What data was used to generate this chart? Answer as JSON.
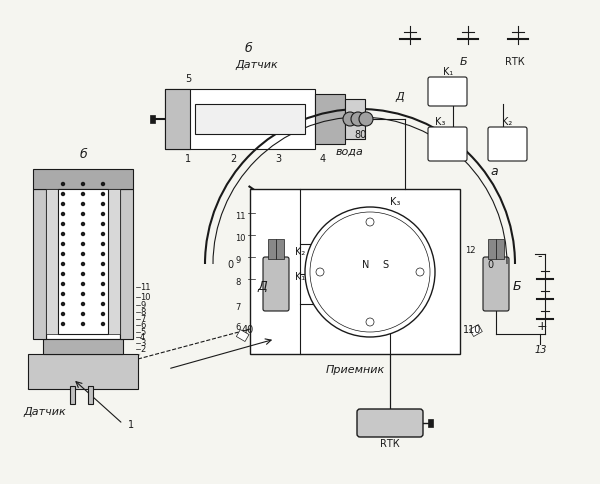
{
  "bg_color": "#f5f5f0",
  "title": "",
  "sensor_label": "Датчик",
  "receiver_label": "Приемник",
  "sensor_label2": "Датчик",
  "label_a": "a",
  "label_b1": "б",
  "label_b2": "б",
  "water_label": "вода",
  "scale_labels": [
    "40",
    "0",
    "80",
    "0",
    "110"
  ],
  "numbers_left": [
    "2",
    "3",
    "4",
    "5",
    "6",
    "7",
    "8",
    "9",
    "10",
    "11"
  ],
  "numbers_bottom": [
    "1",
    "2",
    "3",
    "4",
    "5"
  ],
  "label_D": "Д",
  "label_B": "Б",
  "label_K1": "K₁",
  "label_K2": "K₂",
  "label_K3": "K₃",
  "label_S": "S",
  "label_N": "N",
  "label_Rtk": "RТК",
  "label_Rtk2": "RТК",
  "label_13": "13",
  "label_1": "1"
}
